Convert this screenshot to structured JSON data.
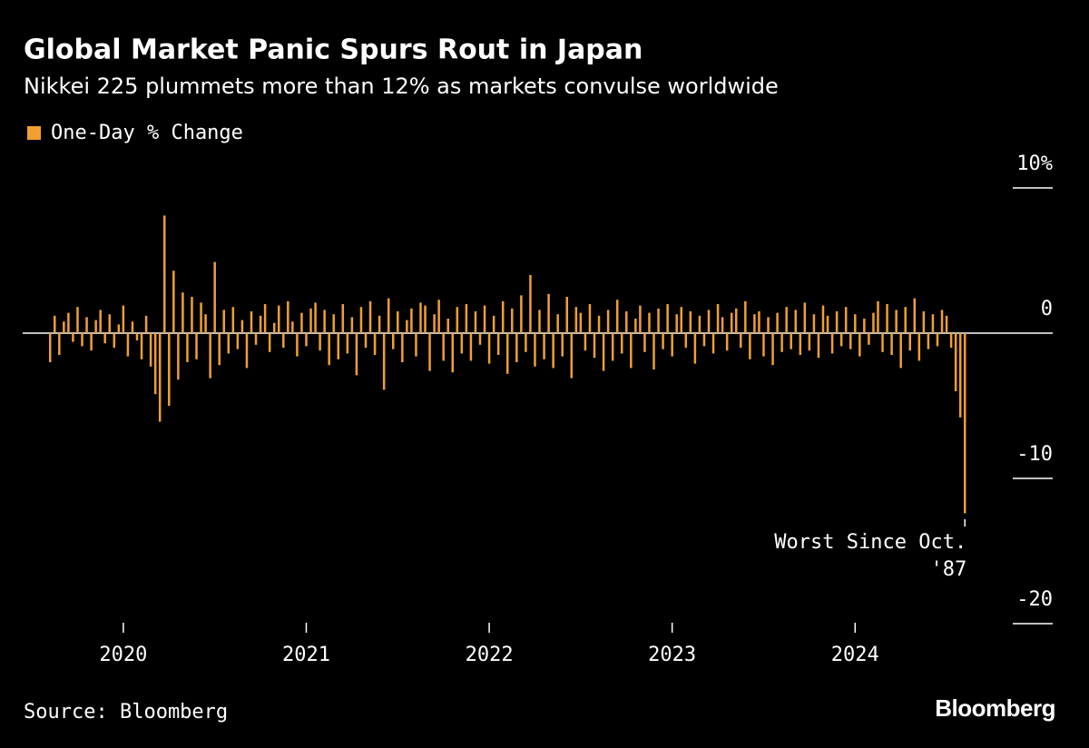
{
  "chart_data": {
    "type": "bar",
    "title": "Global Market Panic Spurs Rout in Japan",
    "subtitle": "Nikkei 225 plummets more than 12% as markets convulse worldwide",
    "source": "Source: Bloomberg",
    "brand": "Bloomberg",
    "annotation": [
      "Worst Since Oct.",
      "'87"
    ],
    "xlim": [
      2019.45,
      2025.08
    ],
    "xticks": [
      2020,
      2021,
      2022,
      2023,
      2024
    ],
    "ylim": [
      -20,
      10
    ],
    "yticks": [
      {
        "value": 10,
        "label": "10%"
      },
      0,
      -10,
      -20
    ],
    "series": [
      {
        "name": "One-Day % Change",
        "color": "#f0a030",
        "x": [
          2019.6,
          2019.625,
          2019.65,
          2019.675,
          2019.7,
          2019.725,
          2019.75,
          2019.775,
          2019.8,
          2019.825,
          2019.85,
          2019.875,
          2019.9,
          2019.925,
          2019.95,
          2019.975,
          2020,
          2020.025,
          2020.05,
          2020.075,
          2020.1,
          2020.125,
          2020.15,
          2020.175,
          2020.2,
          2020.225,
          2020.25,
          2020.275,
          2020.3,
          2020.325,
          2020.35,
          2020.375,
          2020.4,
          2020.425,
          2020.45,
          2020.475,
          2020.5,
          2020.525,
          2020.55,
          2020.575,
          2020.6,
          2020.625,
          2020.65,
          2020.675,
          2020.7,
          2020.725,
          2020.75,
          2020.775,
          2020.8,
          2020.825,
          2020.85,
          2020.875,
          2020.9,
          2020.925,
          2020.95,
          2020.975,
          2021,
          2021.025,
          2021.05,
          2021.075,
          2021.1,
          2021.125,
          2021.15,
          2021.175,
          2021.2,
          2021.225,
          2021.25,
          2021.275,
          2021.3,
          2021.325,
          2021.35,
          2021.375,
          2021.4,
          2021.425,
          2021.45,
          2021.475,
          2021.5,
          2021.525,
          2021.55,
          2021.575,
          2021.6,
          2021.625,
          2021.65,
          2021.675,
          2021.7,
          2021.725,
          2021.75,
          2021.775,
          2021.8,
          2021.825,
          2021.85,
          2021.875,
          2021.9,
          2021.925,
          2021.95,
          2021.975,
          2022,
          2022.025,
          2022.05,
          2022.075,
          2022.1,
          2022.125,
          2022.15,
          2022.175,
          2022.2,
          2022.225,
          2022.25,
          2022.275,
          2022.3,
          2022.325,
          2022.35,
          2022.375,
          2022.4,
          2022.425,
          2022.45,
          2022.475,
          2022.5,
          2022.525,
          2022.55,
          2022.575,
          2022.6,
          2022.625,
          2022.65,
          2022.675,
          2022.7,
          2022.725,
          2022.75,
          2022.775,
          2022.8,
          2022.825,
          2022.85,
          2022.875,
          2022.9,
          2022.925,
          2022.95,
          2022.975,
          2023,
          2023.025,
          2023.05,
          2023.075,
          2023.1,
          2023.125,
          2023.15,
          2023.175,
          2023.2,
          2023.225,
          2023.25,
          2023.275,
          2023.3,
          2023.325,
          2023.35,
          2023.375,
          2023.4,
          2023.425,
          2023.45,
          2023.475,
          2023.5,
          2023.525,
          2023.55,
          2023.575,
          2023.6,
          2023.625,
          2023.65,
          2023.675,
          2023.7,
          2023.725,
          2023.75,
          2023.775,
          2023.8,
          2023.825,
          2023.85,
          2023.875,
          2023.9,
          2023.925,
          2023.95,
          2023.975,
          2024,
          2024.025,
          2024.05,
          2024.075,
          2024.1,
          2024.125,
          2024.15,
          2024.175,
          2024.2,
          2024.225,
          2024.25,
          2024.275,
          2024.3,
          2024.325,
          2024.35,
          2024.375,
          2024.4,
          2024.425,
          2024.45,
          2024.475,
          2024.5,
          2024.525,
          2024.55,
          2024.575,
          2024.6
        ],
        "values": [
          -2.0,
          1.2,
          -1.5,
          0.8,
          1.4,
          -0.6,
          1.8,
          -0.9,
          1.1,
          -1.2,
          0.9,
          1.6,
          -0.7,
          1.3,
          -1.0,
          0.6,
          1.9,
          -1.6,
          0.8,
          -0.5,
          -1.8,
          1.2,
          -2.3,
          -4.2,
          -6.1,
          8.1,
          -5.0,
          4.3,
          -3.2,
          2.8,
          -2.0,
          2.5,
          -1.8,
          2.1,
          1.3,
          -3.1,
          4.9,
          -2.2,
          1.6,
          -1.4,
          1.8,
          -1.1,
          0.9,
          -2.4,
          1.5,
          -0.8,
          1.2,
          2.0,
          -1.3,
          0.7,
          1.9,
          -1.0,
          2.2,
          0.8,
          -1.6,
          1.4,
          -0.9,
          1.7,
          2.1,
          -1.2,
          1.6,
          -2.2,
          1.3,
          -1.8,
          2.0,
          -1.4,
          1.1,
          -2.9,
          1.8,
          -1.0,
          2.2,
          -1.5,
          1.2,
          -3.9,
          2.4,
          -1.1,
          1.5,
          -2.0,
          0.9,
          1.7,
          -1.6,
          2.1,
          1.9,
          -2.6,
          1.3,
          2.3,
          -1.9,
          1.0,
          -2.7,
          1.8,
          -1.4,
          2.0,
          -1.9,
          1.5,
          -0.8,
          1.9,
          -2.1,
          1.2,
          -1.5,
          2.2,
          -2.8,
          1.7,
          -2.0,
          2.6,
          -1.3,
          4.0,
          -2.3,
          1.6,
          -1.8,
          2.7,
          -2.4,
          1.3,
          -1.6,
          2.5,
          -3.1,
          1.8,
          1.4,
          -1.2,
          2.0,
          -1.7,
          1.2,
          -2.6,
          1.6,
          -1.9,
          2.3,
          -1.4,
          1.5,
          -2.4,
          1.0,
          1.9,
          -1.3,
          1.4,
          -2.5,
          1.7,
          -1.1,
          2.0,
          -1.6,
          1.3,
          1.8,
          -1.0,
          1.5,
          -2.1,
          1.2,
          -0.9,
          1.6,
          -1.4,
          2.0,
          1.1,
          -1.2,
          1.4,
          1.7,
          -1.0,
          2.2,
          -1.8,
          1.3,
          1.5,
          -1.6,
          1.1,
          -2.2,
          1.4,
          -1.3,
          1.8,
          -1.1,
          1.6,
          -1.5,
          2.1,
          -1.2,
          1.3,
          -1.7,
          1.9,
          1.2,
          -1.4,
          1.5,
          -0.9,
          1.8,
          -1.1,
          1.3,
          -1.6,
          1.0,
          -0.8,
          1.4,
          2.2,
          -1.3,
          2.0,
          -1.5,
          1.6,
          -2.4,
          1.8,
          -1.2,
          2.4,
          -1.9,
          1.5,
          -1.1,
          1.3,
          -0.9,
          1.6,
          1.2,
          -1.0,
          -4.0,
          -5.8,
          -12.4
        ]
      }
    ]
  }
}
